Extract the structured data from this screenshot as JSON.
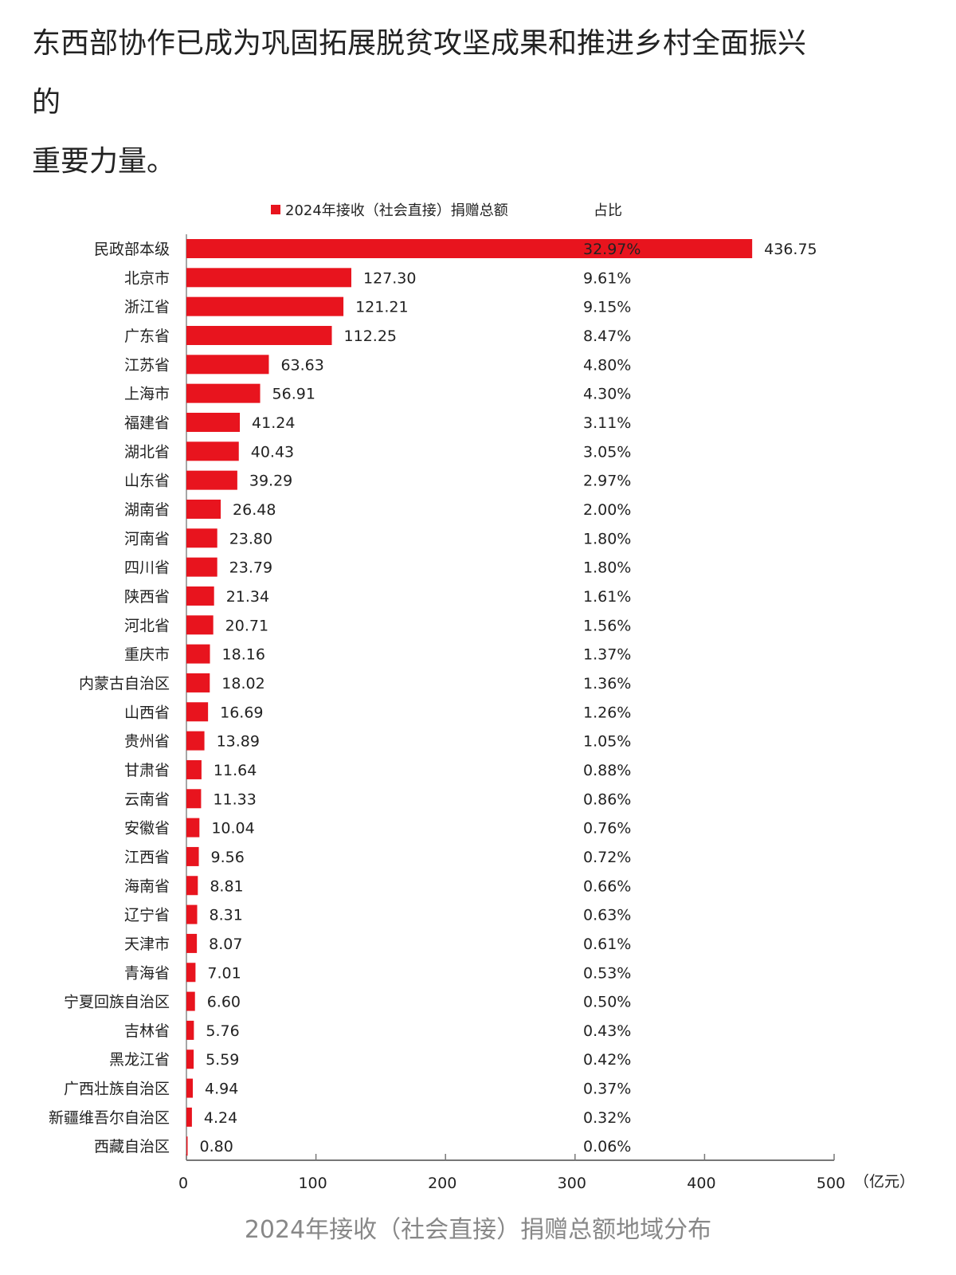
{
  "intro": {
    "lines": [
      "东西部协作已成为巩固拓展脱贫攻坚成果和推进乡村全面振兴",
      "的",
      "重要力量。"
    ]
  },
  "caption": "2024年接收（社会直接）捐赠总额地域分布",
  "chart_data": {
    "type": "bar",
    "orientation": "horizontal",
    "legend": {
      "series_label": "2024年接收（社会直接）捐赠总额",
      "share_label": "占比",
      "placement": "top"
    },
    "bar_color": "#e8141e",
    "unit": "（亿元）",
    "xlim": [
      0,
      500
    ],
    "xticks": [
      0,
      100,
      200,
      300,
      400,
      500
    ],
    "grid": false,
    "categories": [
      "民政部本级",
      "北京市",
      "浙江省",
      "广东省",
      "江苏省",
      "上海市",
      "福建省",
      "湖北省",
      "山东省",
      "湖南省",
      "河南省",
      "四川省",
      "陕西省",
      "河北省",
      "重庆市",
      "内蒙古自治区",
      "山西省",
      "贵州省",
      "甘肃省",
      "云南省",
      "安徽省",
      "江西省",
      "海南省",
      "辽宁省",
      "天津市",
      "青海省",
      "宁夏回族自治区",
      "吉林省",
      "黑龙江省",
      "广西壮族自治区",
      "新疆维吾尔自治区",
      "西藏自治区"
    ],
    "series": [
      {
        "name": "2024年接收（社会直接）捐赠总额",
        "values": [
          436.75,
          127.3,
          121.21,
          112.25,
          63.63,
          56.91,
          41.24,
          40.43,
          39.29,
          26.48,
          23.8,
          23.79,
          21.34,
          20.71,
          18.16,
          18.02,
          16.69,
          13.89,
          11.64,
          11.33,
          10.04,
          9.56,
          8.81,
          8.31,
          8.07,
          7.01,
          6.6,
          5.76,
          5.59,
          4.94,
          4.24,
          0.8
        ],
        "labels": [
          "436.75",
          "127.30",
          "121.21",
          "112.25",
          "63.63",
          "56.91",
          "41.24",
          "40.43",
          "39.29",
          "26.48",
          "23.80",
          "23.79",
          "21.34",
          "20.71",
          "18.16",
          "18.02",
          "16.69",
          "13.89",
          "11.64",
          "11.33",
          "10.04",
          "9.56",
          "8.81",
          "8.31",
          "8.07",
          "7.01",
          "6.60",
          "5.76",
          "5.59",
          "4.94",
          "4.24",
          "0.80"
        ]
      }
    ],
    "shares": [
      "32.97%",
      "9.61%",
      "9.15%",
      "8.47%",
      "4.80%",
      "4.30%",
      "3.11%",
      "3.05%",
      "2.97%",
      "2.00%",
      "1.80%",
      "1.80%",
      "1.61%",
      "1.56%",
      "1.37%",
      "1.36%",
      "1.26%",
      "1.05%",
      "0.88%",
      "0.86%",
      "0.76%",
      "0.72%",
      "0.66%",
      "0.63%",
      "0.61%",
      "0.53%",
      "0.50%",
      "0.43%",
      "0.42%",
      "0.37%",
      "0.32%",
      "0.06%"
    ]
  }
}
